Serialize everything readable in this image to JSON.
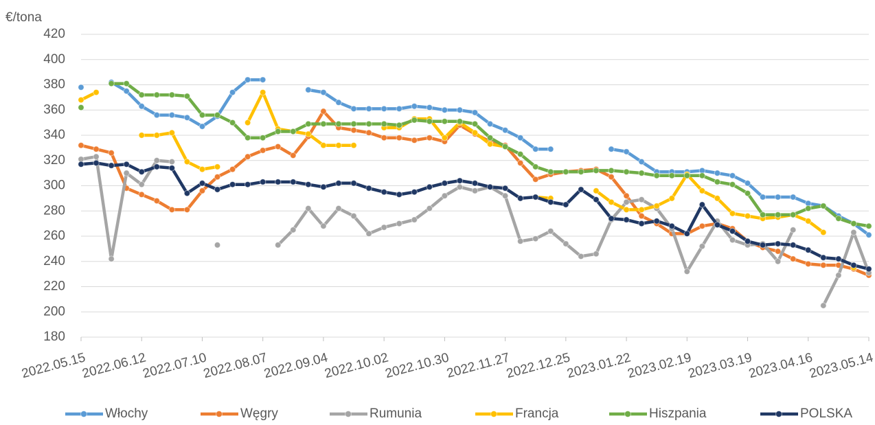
{
  "chart_data": {
    "type": "line",
    "ylabel": "€/tona",
    "categories": [
      "2022.05.15",
      null,
      null,
      null,
      "2022.06.12",
      null,
      null,
      null,
      "2022.07.10",
      null,
      null,
      null,
      "2022.08.07",
      null,
      null,
      null,
      "2022.09.04",
      null,
      null,
      null,
      "2022.10.02",
      null,
      null,
      null,
      "2022.10.30",
      null,
      null,
      null,
      "2022.11.27",
      null,
      null,
      null,
      "2022.12.25",
      null,
      null,
      null,
      "2023.01.22",
      null,
      null,
      null,
      "2023.02.19",
      null,
      null,
      null,
      "2023.03.19",
      null,
      null,
      null,
      "2023.04.16",
      null,
      null,
      null,
      "2023.05.14"
    ],
    "ylim": [
      180,
      420
    ],
    "yticks": [
      180,
      200,
      220,
      240,
      260,
      280,
      300,
      320,
      340,
      360,
      380,
      400,
      420
    ],
    "grid": true,
    "legend": "bottom",
    "series": [
      {
        "name": "Włochy",
        "color": "#5b9bd5",
        "values": [
          378,
          null,
          382,
          375,
          363,
          356,
          356,
          354,
          347,
          355,
          374,
          384,
          384,
          null,
          null,
          376,
          374,
          366,
          361,
          361,
          361,
          361,
          363,
          362,
          360,
          360,
          358,
          349,
          344,
          338,
          329,
          329,
          null,
          null,
          null,
          329,
          327,
          319,
          311,
          311,
          311,
          312,
          310,
          308,
          302,
          291,
          291,
          291,
          286,
          284,
          276,
          270,
          261
        ]
      },
      {
        "name": "Węgry",
        "color": "#ed7d31",
        "values": [
          332,
          329,
          326,
          298,
          293,
          288,
          281,
          281,
          296,
          307,
          313,
          323,
          328,
          331,
          324,
          339,
          359,
          346,
          344,
          342,
          338,
          338,
          336,
          338,
          335,
          348,
          341,
          335,
          332,
          318,
          305,
          309,
          311,
          312,
          313,
          307,
          292,
          276,
          270,
          262,
          262,
          268,
          270,
          266,
          256,
          251,
          248,
          242,
          238,
          237,
          237,
          234,
          229
        ]
      },
      {
        "name": "Rumunia",
        "color": "#a5a5a5",
        "values": [
          321,
          323,
          242,
          310,
          301,
          320,
          319,
          null,
          null,
          253,
          null,
          null,
          null,
          253,
          265,
          282,
          268,
          282,
          276,
          262,
          267,
          270,
          273,
          282,
          292,
          299,
          296,
          299,
          292,
          256,
          258,
          264,
          254,
          244,
          246,
          273,
          287,
          289,
          282,
          266,
          232,
          252,
          272,
          257,
          253,
          254,
          240,
          265,
          null,
          205,
          229,
          263,
          231
        ]
      },
      {
        "name": "Francja",
        "color": "#ffc000",
        "values": [
          368,
          374,
          null,
          null,
          340,
          340,
          342,
          319,
          313,
          315,
          null,
          350,
          374,
          345,
          343,
          341,
          332,
          332,
          332,
          null,
          346,
          346,
          353,
          353,
          338,
          350,
          342,
          333,
          331,
          null,
          291,
          290,
          null,
          null,
          296,
          287,
          281,
          281,
          284,
          290,
          309,
          296,
          290,
          278,
          276,
          274,
          275,
          277,
          272,
          263,
          null,
          235,
          null
        ]
      },
      {
        "name": "Hiszpania",
        "color": "#70ad47",
        "values": [
          362,
          null,
          381,
          381,
          372,
          372,
          372,
          371,
          356,
          356,
          350,
          338,
          338,
          343,
          343,
          349,
          349,
          349,
          349,
          349,
          349,
          348,
          352,
          351,
          351,
          351,
          349,
          338,
          331,
          325,
          315,
          311,
          311,
          311,
          312,
          312,
          311,
          310,
          308,
          308,
          308,
          308,
          303,
          301,
          294,
          277,
          277,
          277,
          282,
          284,
          274,
          270,
          268
        ]
      },
      {
        "name": "POLSKA",
        "color": "#203864",
        "values": [
          317,
          318,
          316,
          317,
          311,
          315,
          314,
          294,
          302,
          297,
          301,
          301,
          303,
          303,
          303,
          301,
          299,
          302,
          302,
          298,
          295,
          293,
          295,
          299,
          302,
          304,
          302,
          299,
          298,
          290,
          291,
          287,
          285,
          297,
          289,
          274,
          273,
          270,
          272,
          268,
          262,
          285,
          269,
          264,
          256,
          253,
          254,
          253,
          249,
          243,
          242,
          237,
          234
        ]
      }
    ]
  }
}
